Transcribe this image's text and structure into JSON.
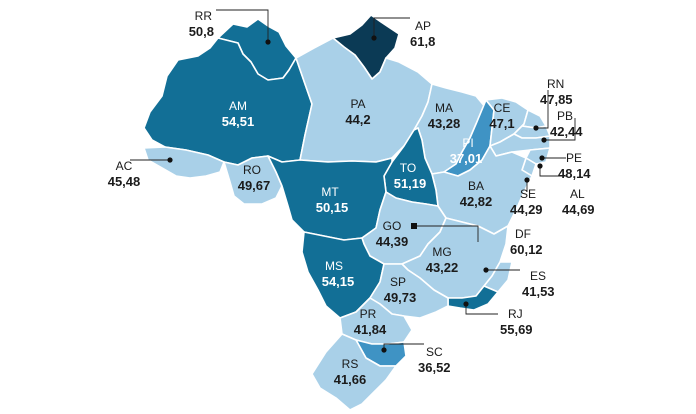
{
  "colors": {
    "darkest": "#0b3a55",
    "dark": "#126f96",
    "medium": "#3f93c4",
    "light": "#a9d0e8",
    "outline": "#ffffff",
    "text_dark": "#1b1b1b",
    "text_light": "#ffffff"
  },
  "states": {
    "RR": {
      "code": "RR",
      "value": "50,8",
      "tier": "dark"
    },
    "AP": {
      "code": "AP",
      "value": "61,8",
      "tier": "darkest"
    },
    "AM": {
      "code": "AM",
      "value": "54,51",
      "tier": "dark"
    },
    "PA": {
      "code": "PA",
      "value": "44,2",
      "tier": "light"
    },
    "MA": {
      "code": "MA",
      "value": "43,28",
      "tier": "light"
    },
    "CE": {
      "code": "CE",
      "value": "47,1",
      "tier": "light"
    },
    "RN": {
      "code": "RN",
      "value": "47,85",
      "tier": "light"
    },
    "PB": {
      "code": "PB",
      "value": "42,44",
      "tier": "light"
    },
    "PE": {
      "code": "PE",
      "value": "48,14",
      "tier": "light"
    },
    "AL": {
      "code": "AL",
      "value": "44,69",
      "tier": "light"
    },
    "SE": {
      "code": "SE",
      "value": "44,29",
      "tier": "light"
    },
    "PI": {
      "code": "PI",
      "value": "37,01",
      "tier": "medium"
    },
    "AC": {
      "code": "AC",
      "value": "45,48",
      "tier": "light"
    },
    "RO": {
      "code": "RO",
      "value": "49,67",
      "tier": "light"
    },
    "MT": {
      "code": "MT",
      "value": "50,15",
      "tier": "dark"
    },
    "TO": {
      "code": "TO",
      "value": "51,19",
      "tier": "dark"
    },
    "BA": {
      "code": "BA",
      "value": "42,82",
      "tier": "light"
    },
    "GO": {
      "code": "GO",
      "value": "44,39",
      "tier": "light"
    },
    "DF": {
      "code": "DF",
      "value": "60,12",
      "tier": "darkest"
    },
    "MG": {
      "code": "MG",
      "value": "43,22",
      "tier": "light"
    },
    "MS": {
      "code": "MS",
      "value": "54,15",
      "tier": "dark"
    },
    "SP": {
      "code": "SP",
      "value": "49,73",
      "tier": "light"
    },
    "ES": {
      "code": "ES",
      "value": "41,53",
      "tier": "light"
    },
    "RJ": {
      "code": "RJ",
      "value": "55,69",
      "tier": "dark"
    },
    "PR": {
      "code": "PR",
      "value": "41,84",
      "tier": "light"
    },
    "SC": {
      "code": "SC",
      "value": "36,52",
      "tier": "medium"
    },
    "RS": {
      "code": "RS",
      "value": "41,66",
      "tier": "light"
    }
  }
}
